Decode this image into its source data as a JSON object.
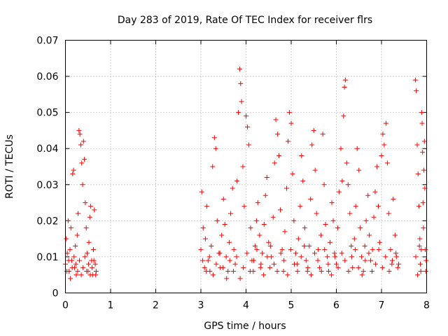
{
  "chart_data": {
    "type": "scatter",
    "title": "Day 283 of 2019, Rate Of TEC Index for receiver flrs",
    "xlabel": "GPS time / hours",
    "ylabel": "ROTI / TECUs",
    "xlim": [
      0,
      8
    ],
    "ylim": [
      0,
      0.07
    ],
    "x_ticks": [
      0,
      1,
      2,
      3,
      4,
      5,
      6,
      7,
      8
    ],
    "x_tick_labels": [
      "0",
      "1",
      "2",
      "3",
      "4",
      "5",
      "6",
      "7",
      "8"
    ],
    "y_ticks": [
      0,
      0.01,
      0.02,
      0.03,
      0.04,
      0.05,
      0.06,
      0.07
    ],
    "y_tick_labels": [
      "0",
      "0.01",
      "0.02",
      "0.03",
      "0.04",
      "0.05",
      "0.06",
      "0.07"
    ],
    "grid": true,
    "marker": "+",
    "color": "#ff0000",
    "series": [
      {
        "name": "ROTI",
        "points": [
          [
            0.0,
            0.008
          ],
          [
            0.02,
            0.015
          ],
          [
            0.04,
            0.011
          ],
          [
            0.06,
            0.02
          ],
          [
            0.08,
            0.006
          ],
          [
            0.1,
            0.012
          ],
          [
            0.12,
            0.018
          ],
          [
            0.14,
            0.009
          ],
          [
            0.16,
            0.033
          ],
          [
            0.18,
            0.034
          ],
          [
            0.2,
            0.007
          ],
          [
            0.22,
            0.013
          ],
          [
            0.24,
            0.005
          ],
          [
            0.26,
            0.016
          ],
          [
            0.28,
            0.022
          ],
          [
            0.3,
            0.045
          ],
          [
            0.32,
            0.044
          ],
          [
            0.34,
            0.041
          ],
          [
            0.36,
            0.036
          ],
          [
            0.38,
            0.03
          ],
          [
            0.4,
            0.042
          ],
          [
            0.42,
            0.037
          ],
          [
            0.44,
            0.025
          ],
          [
            0.46,
            0.018
          ],
          [
            0.48,
            0.011
          ],
          [
            0.5,
            0.006
          ],
          [
            0.52,
            0.014
          ],
          [
            0.54,
            0.021
          ],
          [
            0.56,
            0.024
          ],
          [
            0.58,
            0.009
          ],
          [
            0.6,
            0.005
          ],
          [
            0.62,
            0.012
          ],
          [
            0.64,
            0.023
          ],
          [
            0.66,
            0.008
          ],
          [
            0.68,
            0.006
          ],
          [
            0.03,
            0.006
          ],
          [
            0.07,
            0.009
          ],
          [
            0.11,
            0.004
          ],
          [
            0.15,
            0.007
          ],
          [
            0.19,
            0.01
          ],
          [
            0.23,
            0.008
          ],
          [
            0.27,
            0.006
          ],
          [
            0.31,
            0.009
          ],
          [
            0.35,
            0.005
          ],
          [
            0.39,
            0.007
          ],
          [
            0.43,
            0.01
          ],
          [
            0.47,
            0.006
          ],
          [
            0.51,
            0.008
          ],
          [
            0.55,
            0.005
          ],
          [
            0.59,
            0.007
          ],
          [
            0.63,
            0.009
          ],
          [
            0.67,
            0.005
          ],
          [
            3.0,
            0.012
          ],
          [
            3.02,
            0.028
          ],
          [
            3.05,
            0.018
          ],
          [
            3.08,
            0.007
          ],
          [
            3.1,
            0.015
          ],
          [
            3.13,
            0.024
          ],
          [
            3.16,
            0.009
          ],
          [
            3.2,
            0.006
          ],
          [
            3.23,
            0.013
          ],
          [
            3.26,
            0.035
          ],
          [
            3.3,
            0.043
          ],
          [
            3.33,
            0.04
          ],
          [
            3.36,
            0.02
          ],
          [
            3.4,
            0.011
          ],
          [
            3.43,
            0.007
          ],
          [
            3.46,
            0.016
          ],
          [
            3.5,
            0.026
          ],
          [
            3.53,
            0.019
          ],
          [
            3.56,
            0.01
          ],
          [
            3.6,
            0.006
          ],
          [
            3.63,
            0.014
          ],
          [
            3.66,
            0.022
          ],
          [
            3.7,
            0.029
          ],
          [
            3.73,
            0.012
          ],
          [
            3.76,
            0.008
          ],
          [
            3.8,
            0.031
          ],
          [
            3.83,
            0.05
          ],
          [
            3.86,
            0.062
          ],
          [
            3.88,
            0.058
          ],
          [
            3.9,
            0.053
          ],
          [
            3.93,
            0.035
          ],
          [
            3.96,
            0.024
          ],
          [
            4.0,
            0.049
          ],
          [
            4.03,
            0.046
          ],
          [
            4.06,
            0.041
          ],
          [
            4.1,
            0.018
          ],
          [
            4.13,
            0.009
          ],
          [
            4.16,
            0.006
          ],
          [
            4.2,
            0.013
          ],
          [
            4.23,
            0.02
          ],
          [
            4.26,
            0.025
          ],
          [
            4.3,
            0.016
          ],
          [
            4.33,
            0.008
          ],
          [
            4.36,
            0.011
          ],
          [
            4.4,
            0.019
          ],
          [
            4.43,
            0.027
          ],
          [
            4.46,
            0.032
          ],
          [
            4.5,
            0.014
          ],
          [
            4.53,
            0.007
          ],
          [
            4.56,
            0.01
          ],
          [
            4.6,
            0.021
          ],
          [
            4.63,
            0.036
          ],
          [
            4.66,
            0.048
          ],
          [
            4.7,
            0.044
          ],
          [
            4.73,
            0.038
          ],
          [
            4.76,
            0.023
          ],
          [
            4.8,
            0.012
          ],
          [
            4.83,
            0.006
          ],
          [
            4.86,
            0.017
          ],
          [
            4.9,
            0.029
          ],
          [
            4.93,
            0.042
          ],
          [
            4.96,
            0.05
          ],
          [
            5.0,
            0.047
          ],
          [
            5.03,
            0.033
          ],
          [
            5.06,
            0.02
          ],
          [
            5.1,
            0.011
          ],
          [
            5.13,
            0.008
          ],
          [
            5.16,
            0.015
          ],
          [
            5.2,
            0.024
          ],
          [
            5.23,
            0.038
          ],
          [
            5.26,
            0.031
          ],
          [
            5.3,
            0.018
          ],
          [
            5.33,
            0.009
          ],
          [
            5.36,
            0.006
          ],
          [
            5.4,
            0.013
          ],
          [
            5.43,
            0.026
          ],
          [
            5.46,
            0.041
          ],
          [
            5.5,
            0.045
          ],
          [
            5.53,
            0.034
          ],
          [
            5.56,
            0.022
          ],
          [
            5.6,
            0.012
          ],
          [
            5.63,
            0.007
          ],
          [
            5.66,
            0.016
          ],
          [
            5.7,
            0.044
          ],
          [
            5.73,
            0.03
          ],
          [
            5.76,
            0.019
          ],
          [
            5.8,
            0.01
          ],
          [
            5.83,
            0.006
          ],
          [
            5.86,
            0.014
          ],
          [
            5.9,
            0.025
          ],
          [
            5.93,
            0.02
          ],
          [
            5.96,
            0.011
          ],
          [
            6.0,
            0.008
          ],
          [
            6.03,
            0.018
          ],
          [
            6.06,
            0.028
          ],
          [
            6.1,
            0.04
          ],
          [
            6.13,
            0.031
          ],
          [
            6.16,
            0.049
          ],
          [
            6.18,
            0.057
          ],
          [
            6.2,
            0.059
          ],
          [
            6.23,
            0.036
          ],
          [
            6.26,
            0.03
          ],
          [
            6.3,
            0.022
          ],
          [
            6.33,
            0.013
          ],
          [
            6.36,
            0.007
          ],
          [
            6.4,
            0.015
          ],
          [
            6.43,
            0.024
          ],
          [
            6.46,
            0.04
          ],
          [
            6.5,
            0.034
          ],
          [
            6.53,
            0.018
          ],
          [
            6.56,
            0.01
          ],
          [
            6.6,
            0.006
          ],
          [
            6.63,
            0.013
          ],
          [
            6.66,
            0.02
          ],
          [
            6.7,
            0.027
          ],
          [
            6.73,
            0.016
          ],
          [
            6.76,
            0.009
          ],
          [
            6.8,
            0.012
          ],
          [
            6.83,
            0.021
          ],
          [
            6.86,
            0.028
          ],
          [
            6.9,
            0.035
          ],
          [
            6.93,
            0.024
          ],
          [
            6.96,
            0.014
          ],
          [
            7.0,
            0.038
          ],
          [
            7.03,
            0.044
          ],
          [
            7.06,
            0.041
          ],
          [
            7.1,
            0.047
          ],
          [
            7.13,
            0.036
          ],
          [
            7.16,
            0.022
          ],
          [
            7.2,
            0.012
          ],
          [
            7.23,
            0.008
          ],
          [
            7.26,
            0.026
          ],
          [
            7.3,
            0.016
          ],
          [
            7.33,
            0.01
          ],
          [
            7.36,
            0.007
          ],
          [
            3.04,
            0.009
          ],
          [
            3.12,
            0.006
          ],
          [
            3.19,
            0.01
          ],
          [
            3.27,
            0.005
          ],
          [
            3.34,
            0.008
          ],
          [
            3.42,
            0.011
          ],
          [
            3.49,
            0.007
          ],
          [
            3.57,
            0.004
          ],
          [
            3.64,
            0.009
          ],
          [
            3.72,
            0.006
          ],
          [
            3.79,
            0.01
          ],
          [
            3.87,
            0.004
          ],
          [
            3.94,
            0.007
          ],
          [
            4.02,
            0.011
          ],
          [
            4.09,
            0.006
          ],
          [
            4.17,
            0.009
          ],
          [
            4.24,
            0.012
          ],
          [
            4.32,
            0.007
          ],
          [
            4.39,
            0.005
          ],
          [
            4.47,
            0.01
          ],
          [
            4.54,
            0.013
          ],
          [
            4.62,
            0.008
          ],
          [
            4.69,
            0.006
          ],
          [
            4.77,
            0.011
          ],
          [
            4.84,
            0.009
          ],
          [
            4.92,
            0.005
          ],
          [
            4.99,
            0.012
          ],
          [
            5.07,
            0.008
          ],
          [
            5.14,
            0.006
          ],
          [
            5.22,
            0.01
          ],
          [
            5.29,
            0.013
          ],
          [
            5.37,
            0.007
          ],
          [
            5.44,
            0.005
          ],
          [
            5.52,
            0.011
          ],
          [
            5.59,
            0.009
          ],
          [
            5.67,
            0.006
          ],
          [
            5.74,
            0.012
          ],
          [
            5.82,
            0.008
          ],
          [
            5.89,
            0.005
          ],
          [
            5.97,
            0.01
          ],
          [
            6.04,
            0.007
          ],
          [
            6.12,
            0.011
          ],
          [
            6.19,
            0.009
          ],
          [
            6.27,
            0.006
          ],
          [
            6.34,
            0.01
          ],
          [
            6.42,
            0.012
          ],
          [
            6.49,
            0.007
          ],
          [
            6.57,
            0.005
          ],
          [
            6.64,
            0.009
          ],
          [
            6.72,
            0.011
          ],
          [
            6.79,
            0.006
          ],
          [
            6.87,
            0.008
          ],
          [
            6.94,
            0.012
          ],
          [
            7.02,
            0.007
          ],
          [
            7.09,
            0.01
          ],
          [
            7.17,
            0.006
          ],
          [
            7.24,
            0.009
          ],
          [
            7.32,
            0.011
          ],
          [
            7.38,
            0.008
          ],
          [
            7.75,
            0.059
          ],
          [
            7.77,
            0.056
          ],
          [
            7.79,
            0.041
          ],
          [
            7.81,
            0.033
          ],
          [
            7.83,
            0.024
          ],
          [
            7.85,
            0.015
          ],
          [
            7.86,
            0.008
          ],
          [
            7.88,
            0.012
          ],
          [
            7.89,
            0.05
          ],
          [
            7.9,
            0.047
          ],
          [
            7.91,
            0.039
          ],
          [
            7.92,
            0.025
          ],
          [
            7.93,
            0.018
          ],
          [
            7.94,
            0.034
          ],
          [
            7.95,
            0.042
          ],
          [
            7.96,
            0.029
          ],
          [
            7.97,
            0.012
          ],
          [
            7.98,
            0.006
          ],
          [
            7.99,
            0.009
          ],
          [
            7.76,
            0.01
          ],
          [
            7.8,
            0.005
          ],
          [
            7.84,
            0.013
          ],
          [
            7.87,
            0.006
          ]
        ]
      }
    ]
  }
}
